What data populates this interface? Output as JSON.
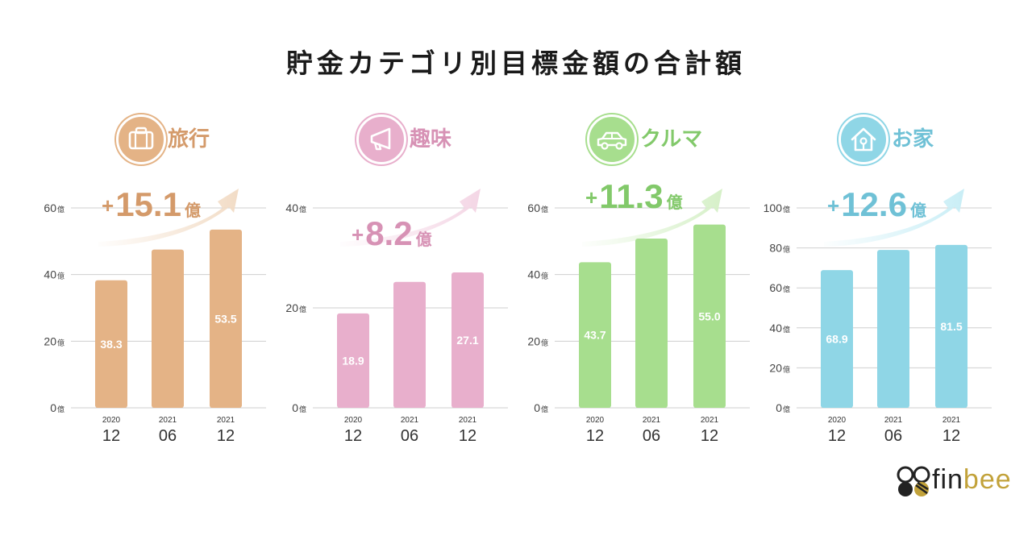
{
  "title": "貯金カテゴリ別目標金額の合計額",
  "unit": "億",
  "gain_prefix": "+",
  "brand": {
    "part1": "fin",
    "part2": "bee"
  },
  "colors": {
    "travel": "#e4b386",
    "travel_dark": "#d49a6a",
    "travel_light": "#f2dcc6",
    "hobby": "#e8afcc",
    "hobby_dark": "#d792b5",
    "hobby_light": "#f4d6e5",
    "car": "#a7de8e",
    "car_dark": "#82c96a",
    "car_light": "#d6f0c8",
    "home": "#8fd6e6",
    "home_dark": "#6fc1d6",
    "home_light": "#c9eef6",
    "brand_gold": "#c2a23a"
  },
  "chart_data": [
    {
      "type": "bar",
      "key": "travel",
      "category_label": "旅行",
      "icon": "suitcase-icon",
      "categories": [
        [
          "2020",
          "12"
        ],
        [
          "2021",
          "06"
        ],
        [
          "2021",
          "12"
        ]
      ],
      "values": [
        38.3,
        47.5,
        53.5
      ],
      "value_labels": [
        "38.3",
        "",
        "53.5"
      ],
      "ylim": [
        0,
        60
      ],
      "yticks": [
        0,
        20,
        40,
        60
      ],
      "gain": "15.1",
      "gain_unit": "億"
    },
    {
      "type": "bar",
      "key": "hobby",
      "category_label": "趣味",
      "icon": "megaphone-icon",
      "categories": [
        [
          "2020",
          "12"
        ],
        [
          "2021",
          "06"
        ],
        [
          "2021",
          "12"
        ]
      ],
      "values": [
        18.9,
        25.2,
        27.1
      ],
      "value_labels": [
        "18.9",
        "",
        "27.1"
      ],
      "ylim": [
        0,
        40
      ],
      "yticks": [
        0,
        20,
        40
      ],
      "gain": "8.2",
      "gain_unit": "億"
    },
    {
      "type": "bar",
      "key": "car",
      "category_label": "クルマ",
      "icon": "car-icon",
      "categories": [
        [
          "2020",
          "12"
        ],
        [
          "2021",
          "06"
        ],
        [
          "2021",
          "12"
        ]
      ],
      "values": [
        43.7,
        50.8,
        55.0
      ],
      "value_labels": [
        "43.7",
        "",
        "55.0"
      ],
      "ylim": [
        0,
        60
      ],
      "yticks": [
        0,
        20,
        40,
        60
      ],
      "gain": "11.3",
      "gain_unit": "億"
    },
    {
      "type": "bar",
      "key": "home",
      "category_label": "お家",
      "icon": "house-icon",
      "categories": [
        [
          "2020",
          "12"
        ],
        [
          "2021",
          "06"
        ],
        [
          "2021",
          "12"
        ]
      ],
      "values": [
        68.9,
        79.0,
        81.5
      ],
      "value_labels": [
        "68.9",
        "",
        "81.5"
      ],
      "ylim": [
        0,
        100
      ],
      "yticks": [
        0,
        20,
        40,
        60,
        80,
        100
      ],
      "gain": "12.6",
      "gain_unit": "億"
    }
  ]
}
